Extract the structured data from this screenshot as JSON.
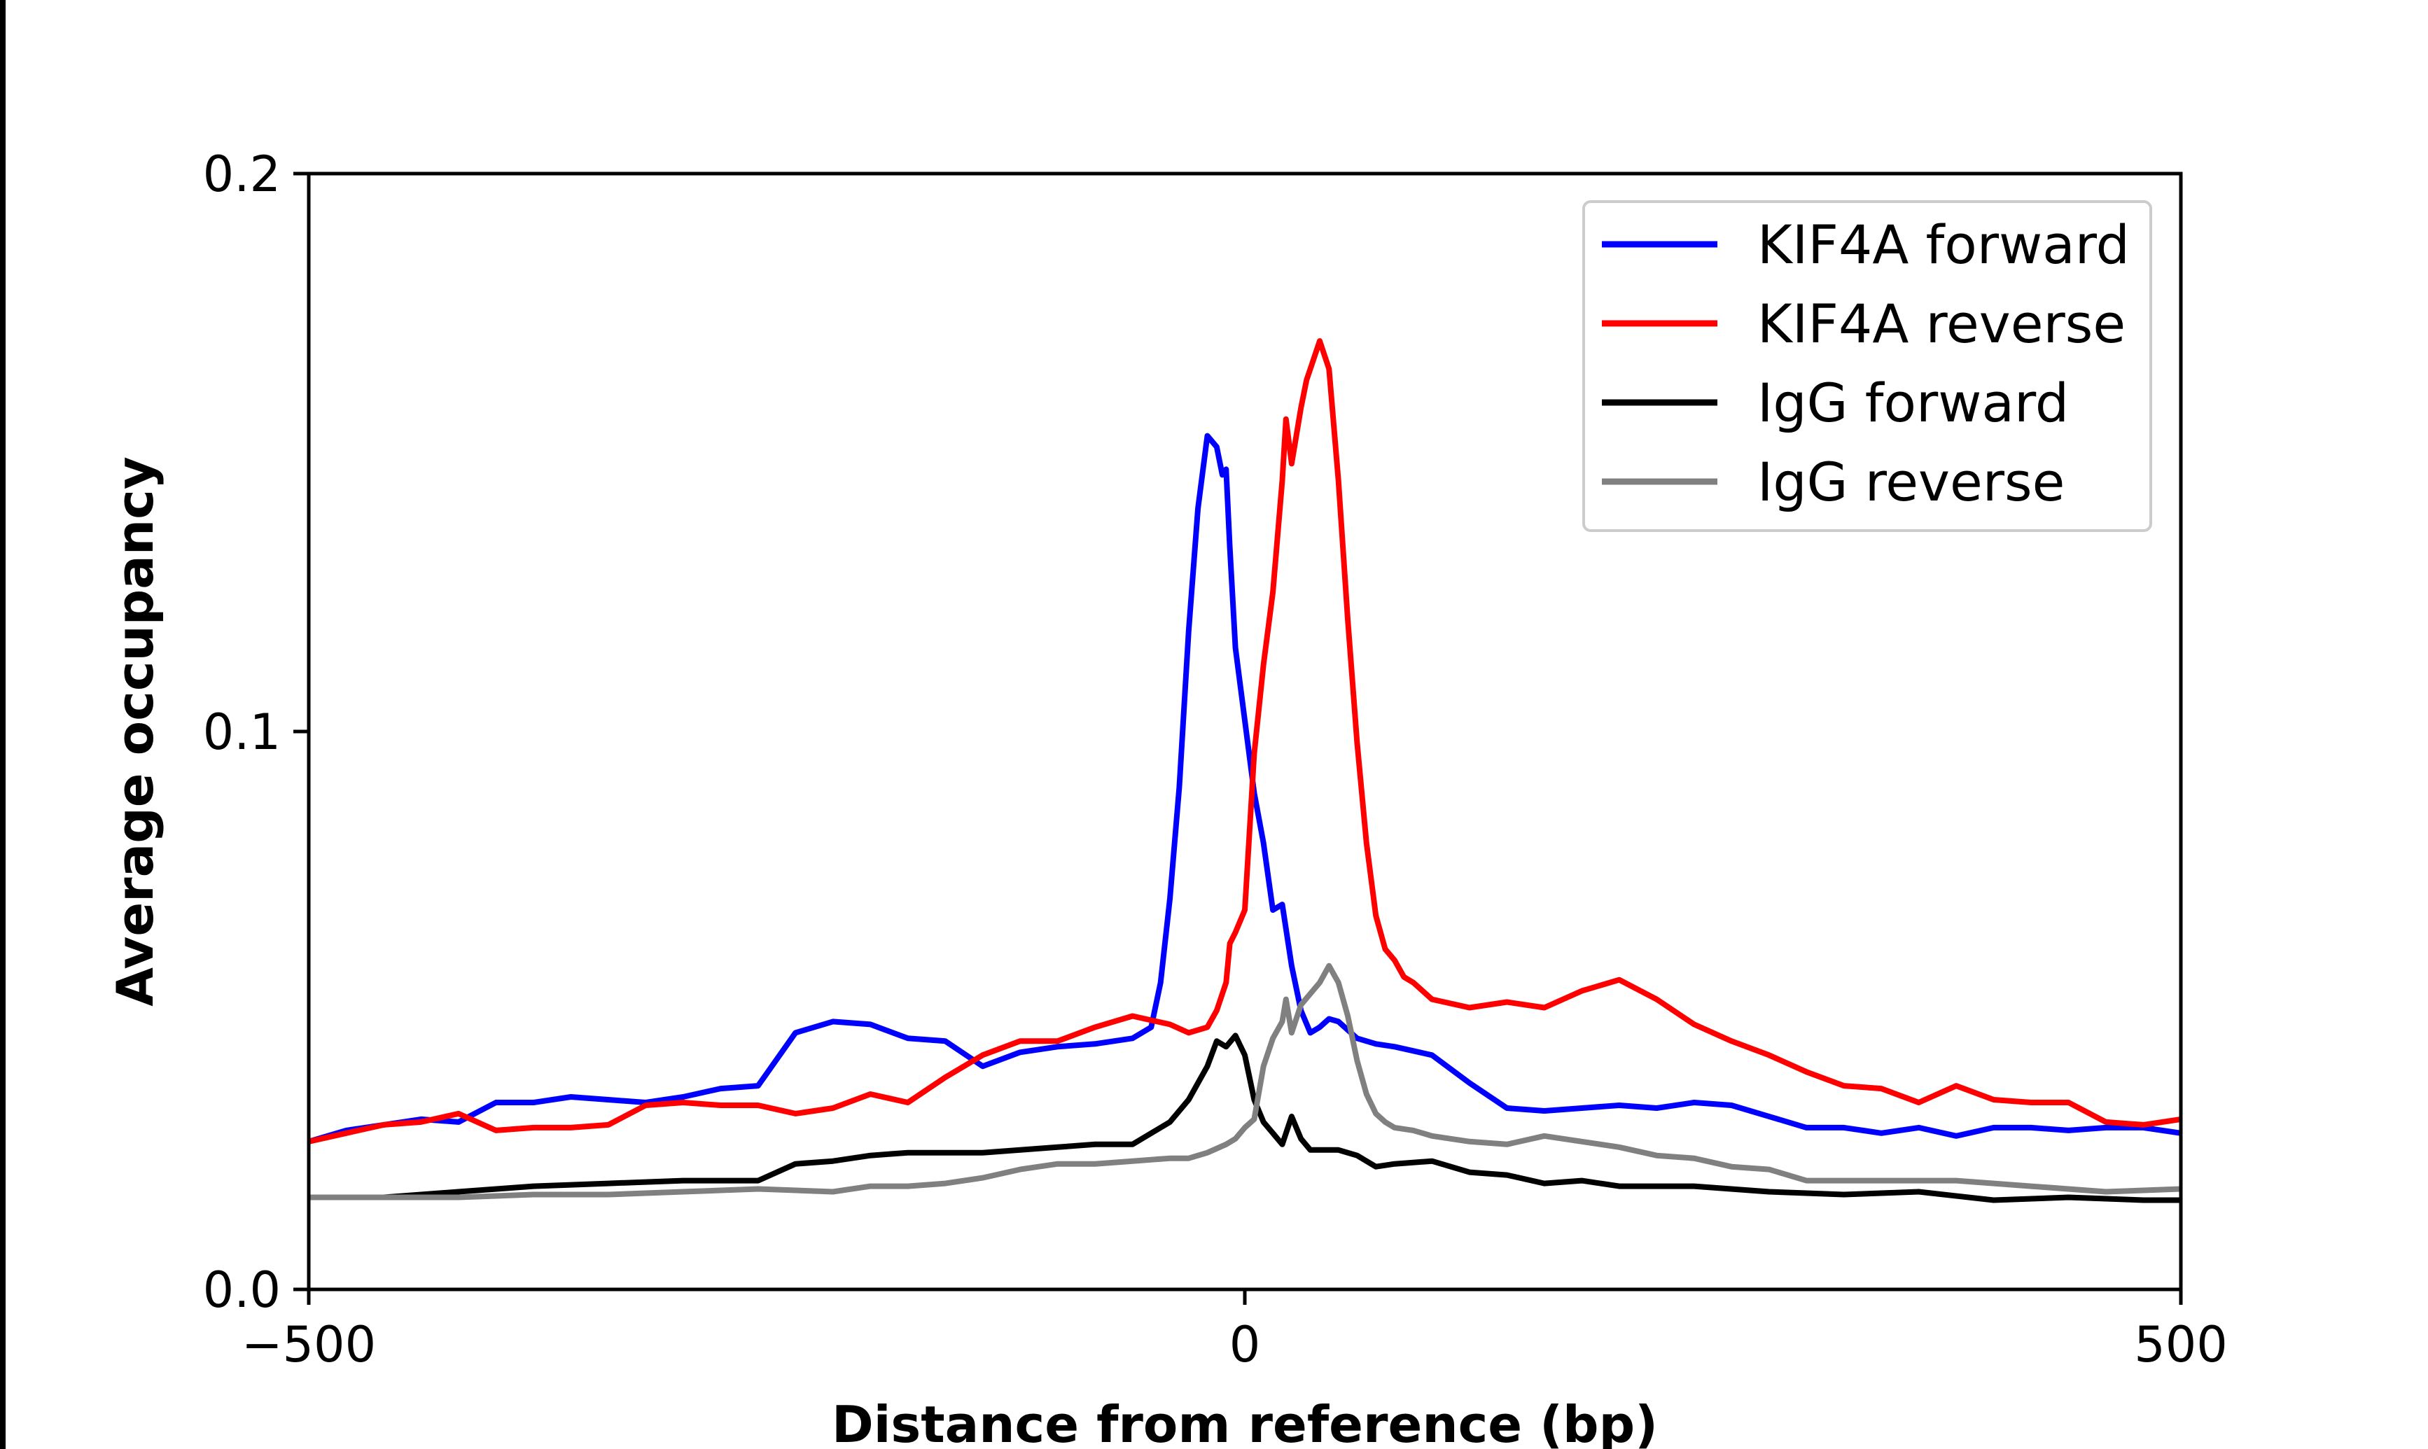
{
  "chart_data": {
    "type": "line",
    "title": "",
    "xlabel": "Distance from reference (bp)",
    "ylabel": "Average occupancy",
    "xlim": [
      -500,
      500
    ],
    "ylim": [
      0,
      0.2
    ],
    "x_ticks": [
      -500,
      0,
      500
    ],
    "x_tick_labels": [
      "−500",
      "0",
      "500"
    ],
    "y_ticks": [
      0.0,
      0.1,
      0.2
    ],
    "y_tick_labels": [
      "0.0",
      "0.1",
      "0.2"
    ],
    "grid": false,
    "legend_position": "top-right",
    "series": [
      {
        "name": "KIF4A forward",
        "color": "#0000ff",
        "x": [
          -500,
          -480,
          -460,
          -440,
          -420,
          -400,
          -380,
          -360,
          -340,
          -320,
          -300,
          -280,
          -260,
          -240,
          -220,
          -200,
          -180,
          -160,
          -140,
          -120,
          -100,
          -80,
          -60,
          -50,
          -45,
          -40,
          -35,
          -30,
          -25,
          -20,
          -15,
          -12,
          -10,
          -8,
          -5,
          0,
          5,
          10,
          15,
          20,
          25,
          30,
          35,
          40,
          45,
          50,
          60,
          70,
          80,
          100,
          120,
          140,
          160,
          180,
          200,
          220,
          240,
          260,
          280,
          300,
          320,
          340,
          360,
          380,
          400,
          420,
          440,
          460,
          480,
          500
        ],
        "y": [
          0.0265,
          0.0285,
          0.0295,
          0.0305,
          0.03,
          0.0335,
          0.0335,
          0.0345,
          0.034,
          0.0335,
          0.0345,
          0.036,
          0.0365,
          0.046,
          0.048,
          0.0475,
          0.045,
          0.0445,
          0.04,
          0.0425,
          0.0435,
          0.044,
          0.045,
          0.047,
          0.055,
          0.07,
          0.09,
          0.118,
          0.14,
          0.153,
          0.151,
          0.146,
          0.147,
          0.133,
          0.115,
          0.102,
          0.089,
          0.08,
          0.068,
          0.069,
          0.058,
          0.05,
          0.046,
          0.047,
          0.0485,
          0.048,
          0.045,
          0.044,
          0.0435,
          0.042,
          0.037,
          0.0325,
          0.032,
          0.0325,
          0.033,
          0.0325,
          0.0335,
          0.033,
          0.031,
          0.029,
          0.029,
          0.028,
          0.029,
          0.0275,
          0.029,
          0.029,
          0.0285,
          0.029,
          0.029,
          0.028
        ]
      },
      {
        "name": "KIF4A reverse",
        "color": "#ff0000",
        "x": [
          -500,
          -480,
          -460,
          -440,
          -420,
          -400,
          -380,
          -360,
          -340,
          -320,
          -300,
          -280,
          -260,
          -240,
          -220,
          -200,
          -180,
          -160,
          -140,
          -120,
          -100,
          -80,
          -60,
          -40,
          -30,
          -20,
          -15,
          -10,
          -8,
          -5,
          0,
          5,
          10,
          15,
          20,
          22,
          25,
          27,
          30,
          33,
          35,
          40,
          45,
          50,
          55,
          60,
          65,
          70,
          75,
          80,
          85,
          90,
          100,
          120,
          140,
          160,
          180,
          200,
          220,
          240,
          260,
          280,
          300,
          320,
          340,
          360,
          380,
          400,
          420,
          440,
          460,
          480,
          500
        ],
        "y": [
          0.0265,
          0.028,
          0.0295,
          0.03,
          0.0315,
          0.0285,
          0.029,
          0.029,
          0.0295,
          0.033,
          0.0335,
          0.033,
          0.033,
          0.0315,
          0.0325,
          0.035,
          0.0335,
          0.038,
          0.042,
          0.0445,
          0.0445,
          0.047,
          0.049,
          0.0475,
          0.046,
          0.047,
          0.05,
          0.055,
          0.062,
          0.064,
          0.068,
          0.096,
          0.112,
          0.125,
          0.145,
          0.156,
          0.148,
          0.152,
          0.158,
          0.163,
          0.165,
          0.17,
          0.165,
          0.145,
          0.12,
          0.098,
          0.08,
          0.067,
          0.061,
          0.059,
          0.056,
          0.055,
          0.052,
          0.0505,
          0.0515,
          0.0505,
          0.0535,
          0.0555,
          0.052,
          0.0475,
          0.0445,
          0.042,
          0.039,
          0.0365,
          0.036,
          0.0335,
          0.0365,
          0.034,
          0.0335,
          0.0335,
          0.03,
          0.0295,
          0.0305
        ]
      },
      {
        "name": "IgG forward",
        "color": "#000000",
        "x": [
          -500,
          -460,
          -420,
          -380,
          -340,
          -300,
          -260,
          -240,
          -220,
          -200,
          -180,
          -160,
          -140,
          -120,
          -100,
          -80,
          -60,
          -40,
          -30,
          -20,
          -15,
          -10,
          -5,
          0,
          5,
          10,
          15,
          20,
          25,
          30,
          35,
          40,
          50,
          60,
          70,
          80,
          100,
          120,
          140,
          160,
          180,
          200,
          240,
          280,
          320,
          360,
          400,
          440,
          480,
          500
        ],
        "y": [
          0.0165,
          0.0165,
          0.0175,
          0.0185,
          0.019,
          0.0195,
          0.0195,
          0.0225,
          0.023,
          0.024,
          0.0245,
          0.0245,
          0.0245,
          0.025,
          0.0255,
          0.026,
          0.026,
          0.03,
          0.034,
          0.04,
          0.0445,
          0.0435,
          0.0455,
          0.042,
          0.034,
          0.03,
          0.028,
          0.026,
          0.031,
          0.027,
          0.025,
          0.025,
          0.025,
          0.024,
          0.022,
          0.0225,
          0.023,
          0.021,
          0.0205,
          0.019,
          0.0195,
          0.0185,
          0.0185,
          0.0175,
          0.017,
          0.0175,
          0.016,
          0.0165,
          0.016,
          0.016
        ]
      },
      {
        "name": "IgG reverse",
        "color": "#808080",
        "x": [
          -500,
          -460,
          -420,
          -380,
          -340,
          -300,
          -260,
          -220,
          -200,
          -180,
          -160,
          -140,
          -120,
          -100,
          -80,
          -60,
          -40,
          -30,
          -20,
          -10,
          -5,
          0,
          5,
          10,
          15,
          20,
          22,
          25,
          30,
          35,
          40,
          45,
          50,
          55,
          60,
          65,
          70,
          75,
          80,
          90,
          100,
          120,
          140,
          160,
          180,
          200,
          220,
          240,
          260,
          280,
          300,
          340,
          380,
          420,
          460,
          500
        ],
        "y": [
          0.0165,
          0.0165,
          0.0165,
          0.017,
          0.017,
          0.0175,
          0.018,
          0.0175,
          0.0185,
          0.0185,
          0.019,
          0.02,
          0.0215,
          0.0225,
          0.0225,
          0.023,
          0.0235,
          0.0235,
          0.0245,
          0.026,
          0.027,
          0.029,
          0.0305,
          0.04,
          0.045,
          0.048,
          0.052,
          0.046,
          0.051,
          0.053,
          0.055,
          0.058,
          0.055,
          0.049,
          0.041,
          0.035,
          0.0315,
          0.03,
          0.029,
          0.0285,
          0.0275,
          0.0265,
          0.026,
          0.0275,
          0.0265,
          0.0255,
          0.024,
          0.0235,
          0.022,
          0.0215,
          0.0195,
          0.0195,
          0.0195,
          0.0185,
          0.0175,
          0.018
        ]
      }
    ]
  }
}
